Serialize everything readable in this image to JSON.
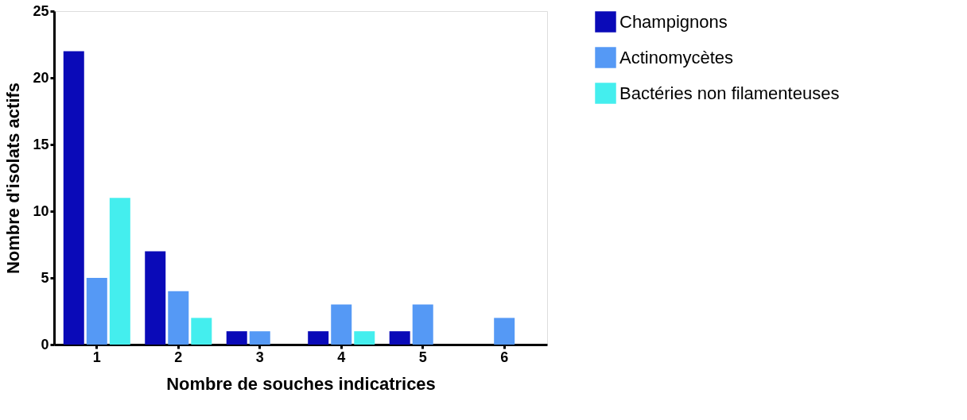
{
  "chart_data": {
    "type": "bar",
    "xlabel": "Nombre de souches indicatrices",
    "ylabel": "Nombre d'isolats actifs",
    "categories": [
      "1",
      "2",
      "3",
      "4",
      "5",
      "6"
    ],
    "series": [
      {
        "name": "Champignons",
        "color": "#0a0ab8",
        "values": [
          22,
          7,
          1,
          1,
          1,
          0
        ]
      },
      {
        "name": "Actinomycètes",
        "color": "#5599f5",
        "values": [
          5,
          4,
          1,
          3,
          3,
          2
        ]
      },
      {
        "name": "Bactéries non filamenteuses",
        "color": "#44eeee",
        "values": [
          11,
          2,
          0,
          1,
          0,
          0
        ]
      }
    ],
    "ylim": [
      0,
      25
    ],
    "yticks": [
      0,
      5,
      10,
      15,
      20,
      25
    ],
    "grid": false,
    "legend": "top right"
  }
}
